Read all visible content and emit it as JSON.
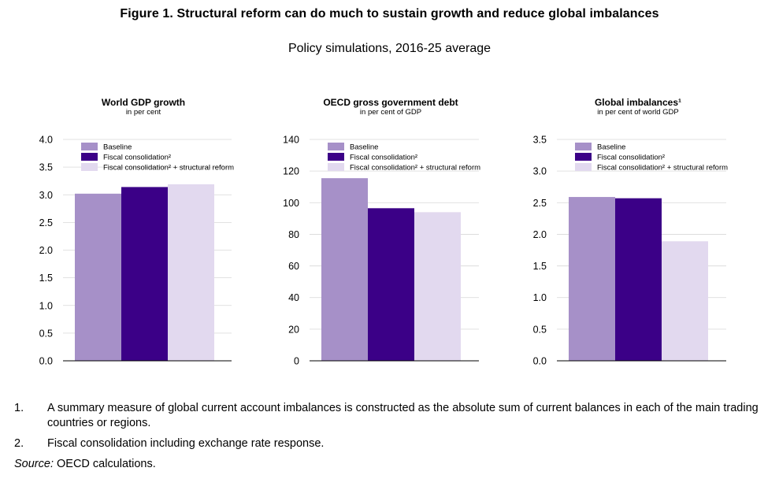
{
  "figure": {
    "title": "Figure 1. Structural reform can do much to sustain growth and reduce global imbalances",
    "subtitle": "Policy simulations, 2016-25 average"
  },
  "colors": {
    "baseline": "#a690c8",
    "fiscal": "#3b0087",
    "structural": "#e2d9ef"
  },
  "chart_data": [
    {
      "type": "bar",
      "title": "World GDP growth",
      "subtitle": "in per cent",
      "categories": [
        ""
      ],
      "series": [
        {
          "name": "Baseline",
          "values": [
            3.02
          ]
        },
        {
          "name": "Fiscal consolidation²",
          "values": [
            3.14
          ]
        },
        {
          "name": "Fiscal consolidation² + structural reform",
          "values": [
            3.19
          ]
        }
      ],
      "ylim": [
        0,
        4.0
      ],
      "yticks": [
        "0.0",
        "0.5",
        "1.0",
        "1.5",
        "2.0",
        "2.5",
        "3.0",
        "3.5",
        "4.0"
      ],
      "grid": true,
      "legend": "top-left"
    },
    {
      "type": "bar",
      "title": "OECD gross government debt",
      "subtitle": "in per cent of GDP",
      "categories": [
        ""
      ],
      "series": [
        {
          "name": "Baseline",
          "values": [
            115.5
          ]
        },
        {
          "name": "Fiscal consolidation²",
          "values": [
            96.5
          ]
        },
        {
          "name": "Fiscal consolidation² + structural reform",
          "values": [
            94
          ]
        }
      ],
      "ylim": [
        0,
        140
      ],
      "yticks": [
        "0",
        "20",
        "40",
        "60",
        "80",
        "100",
        "120",
        "140"
      ],
      "grid": true,
      "legend": "top-left"
    },
    {
      "type": "bar",
      "title": "Global imbalances¹",
      "subtitle": "in per cent of world GDP",
      "categories": [
        ""
      ],
      "series": [
        {
          "name": "Baseline",
          "values": [
            2.59
          ]
        },
        {
          "name": "Fiscal consolidation²",
          "values": [
            2.57
          ]
        },
        {
          "name": "Fiscal consolidation² + structural reform",
          "values": [
            1.89
          ]
        }
      ],
      "ylim": [
        0,
        3.5
      ],
      "yticks": [
        "0.0",
        "0.5",
        "1.0",
        "1.5",
        "2.0",
        "2.5",
        "3.0",
        "3.5"
      ],
      "grid": true,
      "legend": "top-left"
    }
  ],
  "notes": [
    {
      "num": "1.",
      "text": "A summary measure of global current account imbalances is constructed as the absolute sum of current balances in each of the main trading countries or regions."
    },
    {
      "num": "2.",
      "text": "Fiscal consolidation including exchange rate response."
    }
  ],
  "source": {
    "label": "Source:",
    "text": " OECD calculations."
  }
}
